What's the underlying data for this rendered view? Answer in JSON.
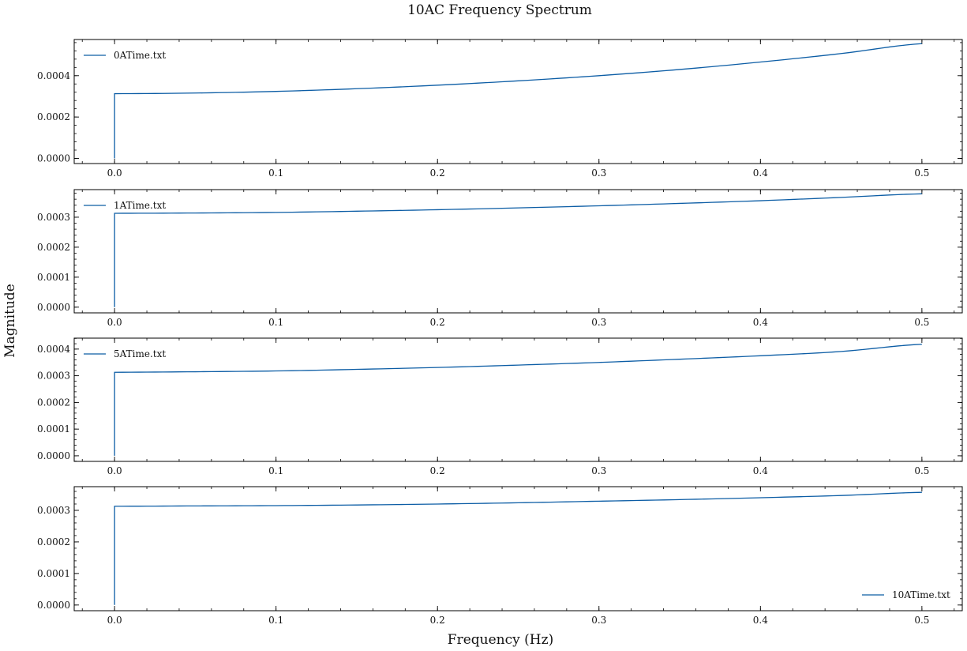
{
  "figure": {
    "title": "10AC Frequency Spectrum",
    "xlabel": "Frequency (Hz)",
    "ylabel": "Magnitude",
    "line_color": "#0C5DA5",
    "axis_color": "#000000"
  },
  "chart_data": [
    {
      "type": "line",
      "series": [
        {
          "name": "0ATime.txt",
          "x": [
            0,
            0,
            0.05,
            0.1,
            0.15,
            0.2,
            0.25,
            0.3,
            0.35,
            0.4,
            0.45,
            0.5
          ],
          "y": [
            0,
            0.000313,
            0.000316,
            0.000324,
            0.000337,
            0.000354,
            0.000375,
            0.0004,
            0.00043,
            0.000466,
            0.000507,
            0.000555
          ]
        }
      ],
      "xlim": [
        -0.025,
        0.525
      ],
      "ylim": [
        -2.5e-05,
        0.000575
      ],
      "xticks": [
        0.0,
        0.1,
        0.2,
        0.3,
        0.4,
        0.5
      ],
      "xtick_labels": [
        "0.0",
        "0.1",
        "0.2",
        "0.3",
        "0.4",
        "0.5"
      ],
      "yticks": [
        0,
        0.0002,
        0.0004
      ],
      "ytick_labels": [
        "0.0000",
        "0.0002",
        "0.0004"
      ],
      "legend": "upper left"
    },
    {
      "type": "line",
      "series": [
        {
          "name": "1ATime.txt",
          "x": [
            0,
            0,
            0.05,
            0.1,
            0.15,
            0.2,
            0.25,
            0.3,
            0.35,
            0.4,
            0.45,
            0.5
          ],
          "y": [
            0,
            0.000313,
            0.000314,
            0.000316,
            0.00032,
            0.000325,
            0.000331,
            0.000338,
            0.000346,
            0.000355,
            0.000366,
            0.000378
          ]
        }
      ],
      "xlim": [
        -0.025,
        0.525
      ],
      "ylim": [
        -1.9e-05,
        0.000392
      ],
      "xticks": [
        0.0,
        0.1,
        0.2,
        0.3,
        0.4,
        0.5
      ],
      "xtick_labels": [
        "0.0",
        "0.1",
        "0.2",
        "0.3",
        "0.4",
        "0.5"
      ],
      "yticks": [
        0,
        0.0001,
        0.0002,
        0.0003
      ],
      "ytick_labels": [
        "0.0000",
        "0.0001",
        "0.0002",
        "0.0003"
      ],
      "legend": "upper left"
    },
    {
      "type": "line",
      "series": [
        {
          "name": "5ATime.txt",
          "x": [
            0,
            0,
            0.05,
            0.1,
            0.15,
            0.2,
            0.25,
            0.3,
            0.35,
            0.4,
            0.45,
            0.5
          ],
          "y": [
            0,
            0.000313,
            0.000315,
            0.000318,
            0.000324,
            0.000331,
            0.00034,
            0.00035,
            0.000362,
            0.000375,
            0.000391,
            0.000418
          ]
        }
      ],
      "xlim": [
        -0.025,
        0.525
      ],
      "ylim": [
        -2.1e-05,
        0.000441
      ],
      "xticks": [
        0.0,
        0.1,
        0.2,
        0.3,
        0.4,
        0.5
      ],
      "xtick_labels": [
        "0.0",
        "0.1",
        "0.2",
        "0.3",
        "0.4",
        "0.5"
      ],
      "yticks": [
        0,
        0.0001,
        0.0002,
        0.0003,
        0.0004
      ],
      "ytick_labels": [
        "0.0000",
        "0.0001",
        "0.0002",
        "0.0003",
        "0.0004"
      ],
      "legend": "upper left"
    },
    {
      "type": "line",
      "series": [
        {
          "name": "10ATime.txt",
          "x": [
            0,
            0,
            0.05,
            0.1,
            0.15,
            0.2,
            0.25,
            0.3,
            0.35,
            0.4,
            0.45,
            0.5
          ],
          "y": [
            0,
            0.000313,
            0.000314,
            0.000315,
            0.000317,
            0.00032,
            0.000324,
            0.000329,
            0.000334,
            0.00034,
            0.000347,
            0.000357
          ]
        }
      ],
      "xlim": [
        -0.025,
        0.525
      ],
      "ylim": [
        -1.8e-05,
        0.000375
      ],
      "xticks": [
        0.0,
        0.1,
        0.2,
        0.3,
        0.4,
        0.5
      ],
      "xtick_labels": [
        "0.0",
        "0.1",
        "0.2",
        "0.3",
        "0.4",
        "0.5"
      ],
      "yticks": [
        0,
        0.0001,
        0.0002,
        0.0003
      ],
      "ytick_labels": [
        "0.0000",
        "0.0001",
        "0.0002",
        "0.0003"
      ],
      "legend": "lower right"
    }
  ]
}
